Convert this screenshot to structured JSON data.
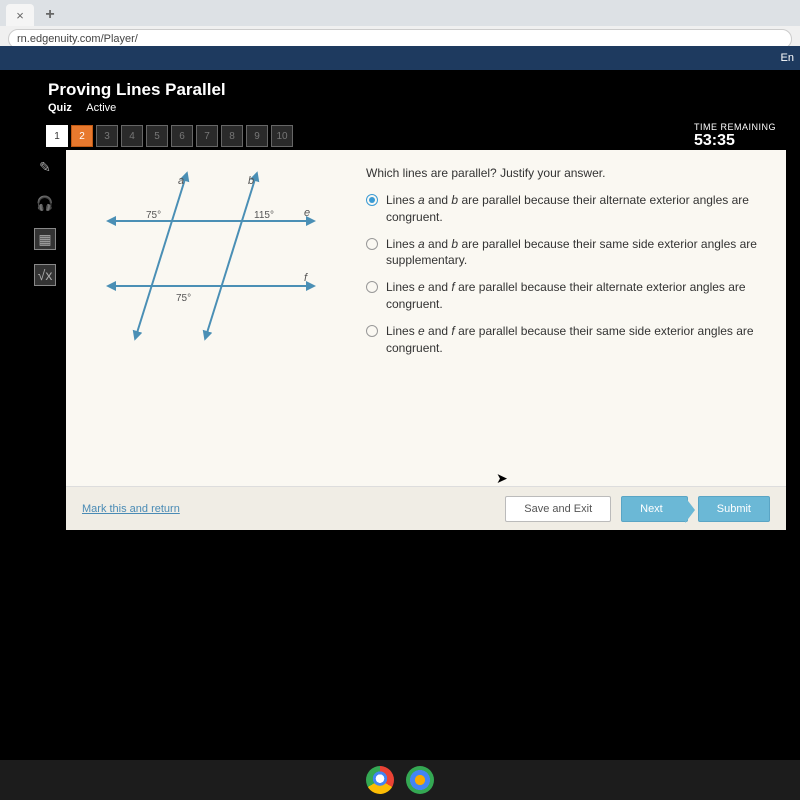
{
  "browser": {
    "url": "rn.edgenuity.com/Player/"
  },
  "header": {
    "right_text": "En"
  },
  "course": {
    "title": "Proving Lines Parallel",
    "sub_bold": "Quiz",
    "sub_plain": "Active"
  },
  "nav": {
    "items": [
      {
        "n": "1",
        "state": "done"
      },
      {
        "n": "2",
        "state": "current"
      },
      {
        "n": "3",
        "state": ""
      },
      {
        "n": "4",
        "state": ""
      },
      {
        "n": "5",
        "state": ""
      },
      {
        "n": "6",
        "state": ""
      },
      {
        "n": "7",
        "state": ""
      },
      {
        "n": "8",
        "state": ""
      },
      {
        "n": "9",
        "state": ""
      },
      {
        "n": "10",
        "state": ""
      }
    ]
  },
  "timer": {
    "label": "TIME REMAINING",
    "value": "53:35"
  },
  "diagram": {
    "stroke": "#4a8fb5",
    "labels": {
      "a": "a",
      "b": "b",
      "e": "e",
      "f": "f"
    },
    "angles": {
      "top_left": "75°",
      "top_right": "115°",
      "bottom": "75°"
    }
  },
  "question": {
    "prompt": "Which lines are parallel? Justify your answer.",
    "options": [
      "Lines <em>a</em> and <em>b</em> are parallel because their alternate exterior angles are congruent.",
      "Lines <em>a</em> and <em>b</em> are parallel because their same side exterior angles are supplementary.",
      "Lines <em>e</em> and <em>f</em> are parallel because their alternate exterior angles are congruent.",
      "Lines <em>e</em> and <em>f</em> are parallel because their same side exterior angles are congruent."
    ],
    "selected": 0
  },
  "footer": {
    "mark": "Mark this and return",
    "save": "Save and Exit",
    "next": "Next",
    "submit": "Submit"
  }
}
